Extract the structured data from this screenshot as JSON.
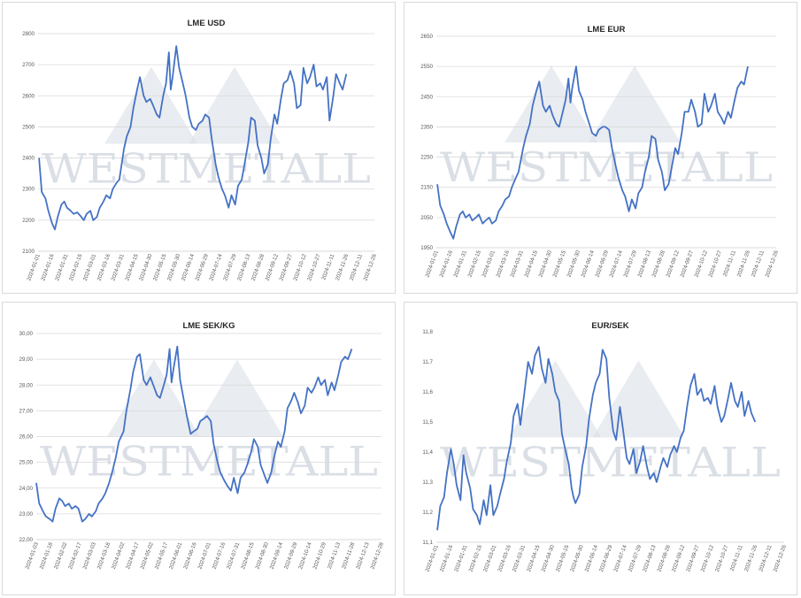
{
  "watermark": "WESTMETALL",
  "colors": {
    "line": "#4472c4",
    "grid": "#d9d9d9",
    "watermark": "#b7c0cf",
    "axis_text": "#595959"
  },
  "chart_data": [
    {
      "type": "line",
      "title": "LME USD",
      "ylim": [
        2100,
        2800
      ],
      "yticks": [
        "2800",
        "2700",
        "2600",
        "2500",
        "2400",
        "2300",
        "2200",
        "2100"
      ],
      "ytick_values": [
        2800,
        2700,
        2600,
        2500,
        2400,
        2300,
        2200,
        2100
      ],
      "xticks": [
        "2024-01-01",
        "2024-01-16",
        "2024-01-31",
        "2024-02-15",
        "2024-03-01",
        "2024-03-16",
        "2024-03-31",
        "2024-04-15",
        "2024-04-30",
        "2024-05-15",
        "2024-05-30",
        "2024-06-14",
        "2024-06-29",
        "2024-07-14",
        "2024-07-29",
        "2024-08-13",
        "2024-08-28",
        "2024-09-12",
        "2024-09-27",
        "2024-10-12",
        "2024-10-27",
        "2024-11-11",
        "2024-11-26",
        "2024-12-11",
        "2024-12-26"
      ],
      "grid": true,
      "x": [
        "2024-01-02",
        "2024-01-05",
        "2024-01-09",
        "2024-01-12",
        "2024-01-16",
        "2024-01-19",
        "2024-01-22",
        "2024-01-26",
        "2024-01-29",
        "2024-02-01",
        "2024-02-05",
        "2024-02-08",
        "2024-02-12",
        "2024-02-15",
        "2024-02-19",
        "2024-02-22",
        "2024-02-26",
        "2024-02-29",
        "2024-03-04",
        "2024-03-07",
        "2024-03-11",
        "2024-03-14",
        "2024-03-18",
        "2024-03-21",
        "2024-03-25",
        "2024-03-28",
        "2024-04-02",
        "2024-04-05",
        "2024-04-09",
        "2024-04-12",
        "2024-04-16",
        "2024-04-19",
        "2024-04-23",
        "2024-04-26",
        "2024-04-30",
        "2024-05-03",
        "2024-05-07",
        "2024-05-10",
        "2024-05-14",
        "2024-05-17",
        "2024-05-20",
        "2024-05-22",
        "2024-05-24",
        "2024-05-28",
        "2024-05-31",
        "2024-06-04",
        "2024-06-07",
        "2024-06-11",
        "2024-06-14",
        "2024-06-18",
        "2024-06-21",
        "2024-06-25",
        "2024-06-28",
        "2024-07-02",
        "2024-07-05",
        "2024-07-09",
        "2024-07-12",
        "2024-07-16",
        "2024-07-19",
        "2024-07-23",
        "2024-07-26",
        "2024-07-30",
        "2024-08-02",
        "2024-08-06",
        "2024-08-09",
        "2024-08-13",
        "2024-08-16",
        "2024-08-20",
        "2024-08-23",
        "2024-08-27",
        "2024-08-30",
        "2024-09-03",
        "2024-09-06",
        "2024-09-10",
        "2024-09-13",
        "2024-09-17",
        "2024-09-20",
        "2024-09-24",
        "2024-09-27",
        "2024-10-01",
        "2024-10-04",
        "2024-10-08",
        "2024-10-11",
        "2024-10-15",
        "2024-10-18",
        "2024-10-22",
        "2024-10-25",
        "2024-10-29",
        "2024-11-01",
        "2024-11-05",
        "2024-11-08",
        "2024-11-12",
        "2024-11-15",
        "2024-11-19",
        "2024-11-22",
        "2024-11-26"
      ],
      "values": [
        2400,
        2290,
        2270,
        2230,
        2190,
        2170,
        2210,
        2250,
        2260,
        2240,
        2230,
        2220,
        2225,
        2215,
        2200,
        2220,
        2230,
        2200,
        2210,
        2240,
        2260,
        2280,
        2270,
        2300,
        2320,
        2330,
        2430,
        2470,
        2500,
        2560,
        2620,
        2660,
        2600,
        2580,
        2590,
        2570,
        2540,
        2530,
        2600,
        2640,
        2740,
        2620,
        2660,
        2760,
        2690,
        2640,
        2600,
        2530,
        2500,
        2490,
        2510,
        2520,
        2540,
        2530,
        2460,
        2380,
        2340,
        2300,
        2280,
        2240,
        2280,
        2250,
        2310,
        2330,
        2380,
        2450,
        2530,
        2520,
        2440,
        2400,
        2350,
        2380,
        2460,
        2540,
        2510,
        2590,
        2640,
        2650,
        2680,
        2640,
        2560,
        2570,
        2690,
        2640,
        2660,
        2700,
        2630,
        2640,
        2620,
        2660,
        2520,
        2600,
        2670,
        2640,
        2620,
        2670
      ],
      "series": [
        {
          "name": ""
        }
      ]
    },
    {
      "type": "line",
      "title": "LME EUR",
      "ylim": [
        1950,
        2650
      ],
      "yticks": [
        "2650",
        "2550",
        "2450",
        "2350",
        "2250",
        "2150",
        "2050",
        "1950"
      ],
      "ytick_values": [
        2650,
        2550,
        2450,
        2350,
        2250,
        2150,
        2050,
        1950
      ],
      "xticks": [
        "2024-01-01",
        "2024-01-16",
        "2024-01-31",
        "2024-02-15",
        "2024-03-01",
        "2024-03-16",
        "2024-03-31",
        "2024-04-15",
        "2024-04-30",
        "2024-05-15",
        "2024-05-30",
        "2024-06-14",
        "2024-06-29",
        "2024-07-14",
        "2024-07-29",
        "2024-08-13",
        "2024-08-28",
        "2024-09-12",
        "2024-09-27",
        "2024-10-12",
        "2024-10-27",
        "2024-11-11",
        "2024-11-26",
        "2024-12-11",
        "2024-12-26"
      ],
      "grid": true,
      "x": [
        "2024-01-02",
        "2024-01-05",
        "2024-01-09",
        "2024-01-12",
        "2024-01-16",
        "2024-01-19",
        "2024-01-22",
        "2024-01-26",
        "2024-01-29",
        "2024-02-01",
        "2024-02-05",
        "2024-02-08",
        "2024-02-12",
        "2024-02-15",
        "2024-02-19",
        "2024-02-22",
        "2024-02-26",
        "2024-02-29",
        "2024-03-04",
        "2024-03-07",
        "2024-03-11",
        "2024-03-14",
        "2024-03-18",
        "2024-03-21",
        "2024-03-25",
        "2024-03-28",
        "2024-04-02",
        "2024-04-05",
        "2024-04-09",
        "2024-04-12",
        "2024-04-16",
        "2024-04-19",
        "2024-04-23",
        "2024-04-26",
        "2024-04-30",
        "2024-05-03",
        "2024-05-07",
        "2024-05-10",
        "2024-05-14",
        "2024-05-17",
        "2024-05-20",
        "2024-05-22",
        "2024-05-24",
        "2024-05-28",
        "2024-05-31",
        "2024-06-04",
        "2024-06-07",
        "2024-06-11",
        "2024-06-14",
        "2024-06-18",
        "2024-06-21",
        "2024-06-25",
        "2024-06-28",
        "2024-07-02",
        "2024-07-05",
        "2024-07-09",
        "2024-07-12",
        "2024-07-16",
        "2024-07-19",
        "2024-07-23",
        "2024-07-26",
        "2024-07-30",
        "2024-08-02",
        "2024-08-06",
        "2024-08-09",
        "2024-08-13",
        "2024-08-16",
        "2024-08-20",
        "2024-08-23",
        "2024-08-27",
        "2024-08-30",
        "2024-09-03",
        "2024-09-06",
        "2024-09-10",
        "2024-09-13",
        "2024-09-17",
        "2024-09-20",
        "2024-09-24",
        "2024-09-27",
        "2024-10-01",
        "2024-10-04",
        "2024-10-08",
        "2024-10-11",
        "2024-10-15",
        "2024-10-18",
        "2024-10-22",
        "2024-10-25",
        "2024-10-29",
        "2024-11-01",
        "2024-11-05",
        "2024-11-08",
        "2024-11-12",
        "2024-11-15",
        "2024-11-19",
        "2024-11-22",
        "2024-11-26"
      ],
      "values": [
        2160,
        2090,
        2060,
        2030,
        2000,
        1980,
        2020,
        2060,
        2070,
        2050,
        2060,
        2040,
        2050,
        2060,
        2030,
        2040,
        2050,
        2030,
        2040,
        2070,
        2090,
        2110,
        2120,
        2150,
        2180,
        2200,
        2280,
        2320,
        2360,
        2420,
        2470,
        2500,
        2420,
        2400,
        2420,
        2390,
        2360,
        2350,
        2400,
        2440,
        2510,
        2430,
        2480,
        2550,
        2470,
        2440,
        2400,
        2360,
        2330,
        2320,
        2340,
        2350,
        2350,
        2340,
        2280,
        2220,
        2180,
        2140,
        2120,
        2070,
        2110,
        2080,
        2130,
        2150,
        2200,
        2250,
        2320,
        2310,
        2240,
        2200,
        2140,
        2160,
        2210,
        2280,
        2260,
        2330,
        2400,
        2400,
        2440,
        2400,
        2350,
        2360,
        2460,
        2400,
        2420,
        2460,
        2400,
        2380,
        2360,
        2400,
        2380,
        2440,
        2480,
        2500,
        2490,
        2550
      ],
      "series": [
        {
          "name": ""
        }
      ]
    },
    {
      "type": "line",
      "title": "LME SEK/KG",
      "ylim": [
        22,
        30
      ],
      "yticks": [
        "30,00",
        "29,00",
        "28,00",
        "27,00",
        "26,00",
        "25,00",
        "24,00",
        "23,00",
        "22,00"
      ],
      "ytick_values": [
        30,
        29,
        28,
        27,
        26,
        25,
        24,
        23,
        22
      ],
      "xticks": [
        "2024-01-03",
        "2024-01-18",
        "2024-02-02",
        "2024-02-17",
        "2024-03-03",
        "2024-03-18",
        "2024-04-02",
        "2024-04-17",
        "2024-05-02",
        "2024-05-17",
        "2024-06-01",
        "2024-06-16",
        "2024-07-01",
        "2024-07-16",
        "2024-07-31",
        "2024-08-15",
        "2024-08-30",
        "2024-09-14",
        "2024-09-29",
        "2024-10-14",
        "2024-10-29",
        "2024-11-13",
        "2024-11-28",
        "2024-12-13",
        "2024-12-28"
      ],
      "grid": true,
      "x": [
        "2024-01-03",
        "2024-01-06",
        "2024-01-10",
        "2024-01-13",
        "2024-01-17",
        "2024-01-20",
        "2024-01-23",
        "2024-01-27",
        "2024-01-30",
        "2024-02-02",
        "2024-02-06",
        "2024-02-09",
        "2024-02-13",
        "2024-02-16",
        "2024-02-20",
        "2024-02-23",
        "2024-02-27",
        "2024-03-01",
        "2024-03-05",
        "2024-03-08",
        "2024-03-12",
        "2024-03-15",
        "2024-03-19",
        "2024-03-22",
        "2024-03-26",
        "2024-03-29",
        "2024-04-03",
        "2024-04-06",
        "2024-04-10",
        "2024-04-13",
        "2024-04-17",
        "2024-04-20",
        "2024-04-24",
        "2024-04-27",
        "2024-05-01",
        "2024-05-04",
        "2024-05-08",
        "2024-05-11",
        "2024-05-15",
        "2024-05-18",
        "2024-05-21",
        "2024-05-23",
        "2024-05-25",
        "2024-05-29",
        "2024-06-01",
        "2024-06-05",
        "2024-06-08",
        "2024-06-12",
        "2024-06-15",
        "2024-06-19",
        "2024-06-22",
        "2024-06-26",
        "2024-06-29",
        "2024-07-03",
        "2024-07-06",
        "2024-07-10",
        "2024-07-13",
        "2024-07-17",
        "2024-07-20",
        "2024-07-24",
        "2024-07-27",
        "2024-07-31",
        "2024-08-03",
        "2024-08-07",
        "2024-08-10",
        "2024-08-14",
        "2024-08-17",
        "2024-08-21",
        "2024-08-24",
        "2024-08-28",
        "2024-08-31",
        "2024-09-04",
        "2024-09-07",
        "2024-09-11",
        "2024-09-14",
        "2024-09-18",
        "2024-09-21",
        "2024-09-25",
        "2024-09-28",
        "2024-10-02",
        "2024-10-05",
        "2024-10-09",
        "2024-10-12",
        "2024-10-16",
        "2024-10-19",
        "2024-10-23",
        "2024-10-26",
        "2024-10-30",
        "2024-11-02",
        "2024-11-06",
        "2024-11-09",
        "2024-11-13",
        "2024-11-16",
        "2024-11-20",
        "2024-11-23",
        "2024-11-27"
      ],
      "values": [
        24.2,
        23.4,
        23.1,
        22.9,
        22.8,
        22.7,
        23.2,
        23.6,
        23.5,
        23.3,
        23.4,
        23.2,
        23.3,
        23.2,
        22.7,
        22.8,
        23.0,
        22.9,
        23.1,
        23.4,
        23.6,
        23.8,
        24.2,
        24.6,
        25.2,
        25.8,
        26.2,
        27.0,
        27.8,
        28.5,
        29.1,
        29.2,
        28.2,
        28.0,
        28.3,
        28.0,
        27.6,
        27.5,
        28.0,
        28.4,
        29.4,
        28.1,
        28.6,
        29.5,
        28.2,
        27.4,
        26.8,
        26.1,
        26.2,
        26.3,
        26.6,
        26.7,
        26.8,
        26.6,
        25.7,
        25.0,
        24.6,
        24.3,
        24.1,
        23.9,
        24.4,
        23.8,
        24.4,
        24.6,
        24.9,
        25.4,
        25.9,
        25.6,
        24.9,
        24.5,
        24.2,
        24.6,
        25.2,
        25.8,
        25.6,
        26.2,
        27.1,
        27.4,
        27.7,
        27.3,
        26.9,
        27.2,
        27.9,
        27.7,
        27.9,
        28.3,
        28.0,
        28.2,
        27.6,
        28.1,
        27.8,
        28.4,
        28.9,
        29.1,
        29.0,
        29.4
      ],
      "series": [
        {
          "name": ""
        }
      ]
    },
    {
      "type": "line",
      "title": "EUR/SEK",
      "ylim": [
        11.1,
        11.8
      ],
      "yticks": [
        "11,8",
        "11,7",
        "11,6",
        "11,5",
        "11,4",
        "11,3",
        "11,2",
        "11,1"
      ],
      "ytick_values": [
        11.8,
        11.7,
        11.6,
        11.5,
        11.4,
        11.3,
        11.2,
        11.1
      ],
      "xticks": [
        "2024-01-01",
        "2024-01-16",
        "2024-01-31",
        "2024-02-15",
        "2024-03-01",
        "2024-03-16",
        "2024-03-31",
        "2024-04-15",
        "2024-04-30",
        "2024-05-15",
        "2024-05-30",
        "2024-06-14",
        "2024-06-29",
        "2024-07-14",
        "2024-07-29",
        "2024-08-13",
        "2024-08-28",
        "2024-09-12",
        "2024-09-27",
        "2024-10-12",
        "2024-10-27",
        "2024-11-11",
        "2024-11-26",
        "2024-12-11",
        "2024-12-26"
      ],
      "grid": false,
      "x": [
        "2024-01-02",
        "2024-01-05",
        "2024-01-09",
        "2024-01-12",
        "2024-01-16",
        "2024-01-19",
        "2024-01-22",
        "2024-01-26",
        "2024-01-29",
        "2024-02-01",
        "2024-02-05",
        "2024-02-08",
        "2024-02-12",
        "2024-02-15",
        "2024-02-19",
        "2024-02-22",
        "2024-02-26",
        "2024-02-29",
        "2024-03-04",
        "2024-03-07",
        "2024-03-11",
        "2024-03-14",
        "2024-03-18",
        "2024-03-21",
        "2024-03-25",
        "2024-03-28",
        "2024-04-02",
        "2024-04-05",
        "2024-04-09",
        "2024-04-12",
        "2024-04-16",
        "2024-04-19",
        "2024-04-23",
        "2024-04-26",
        "2024-04-30",
        "2024-05-03",
        "2024-05-07",
        "2024-05-10",
        "2024-05-14",
        "2024-05-17",
        "2024-05-20",
        "2024-05-22",
        "2024-05-24",
        "2024-05-28",
        "2024-05-31",
        "2024-06-04",
        "2024-06-07",
        "2024-06-11",
        "2024-06-14",
        "2024-06-18",
        "2024-06-21",
        "2024-06-25",
        "2024-06-28",
        "2024-07-02",
        "2024-07-05",
        "2024-07-09",
        "2024-07-12",
        "2024-07-16",
        "2024-07-19",
        "2024-07-23",
        "2024-07-26",
        "2024-07-30",
        "2024-08-02",
        "2024-08-06",
        "2024-08-09",
        "2024-08-13",
        "2024-08-16",
        "2024-08-20",
        "2024-08-23",
        "2024-08-27",
        "2024-08-30",
        "2024-09-03",
        "2024-09-06",
        "2024-09-10",
        "2024-09-13",
        "2024-09-17",
        "2024-09-20",
        "2024-09-24",
        "2024-09-27",
        "2024-10-01",
        "2024-10-04",
        "2024-10-08",
        "2024-10-11",
        "2024-10-15",
        "2024-10-18",
        "2024-10-22",
        "2024-10-25",
        "2024-10-29",
        "2024-11-01",
        "2024-11-05",
        "2024-11-08",
        "2024-11-12",
        "2024-11-15",
        "2024-11-19",
        "2024-11-22",
        "2024-11-26"
      ],
      "values": [
        11.14,
        11.22,
        11.25,
        11.33,
        11.41,
        11.36,
        11.29,
        11.24,
        11.39,
        11.33,
        11.28,
        11.21,
        11.19,
        11.16,
        11.24,
        11.19,
        11.29,
        11.19,
        11.22,
        11.26,
        11.31,
        11.37,
        11.43,
        11.52,
        11.56,
        11.49,
        11.62,
        11.7,
        11.66,
        11.72,
        11.75,
        11.68,
        11.63,
        11.71,
        11.66,
        11.6,
        11.57,
        11.46,
        11.4,
        11.36,
        11.28,
        11.25,
        11.23,
        11.26,
        11.35,
        11.42,
        11.51,
        11.59,
        11.63,
        11.66,
        11.74,
        11.71,
        11.58,
        11.47,
        11.44,
        11.55,
        11.48,
        11.38,
        11.36,
        11.41,
        11.33,
        11.37,
        11.42,
        11.35,
        11.31,
        11.33,
        11.3,
        11.35,
        11.38,
        11.35,
        11.39,
        11.42,
        11.4,
        11.45,
        11.47,
        11.56,
        11.62,
        11.66,
        11.59,
        11.61,
        11.57,
        11.58,
        11.56,
        11.62,
        11.55,
        11.5,
        11.52,
        11.58,
        11.63,
        11.57,
        11.55,
        11.6,
        11.52,
        11.57,
        11.53,
        11.5
      ],
      "series": [
        {
          "name": ""
        }
      ]
    }
  ]
}
